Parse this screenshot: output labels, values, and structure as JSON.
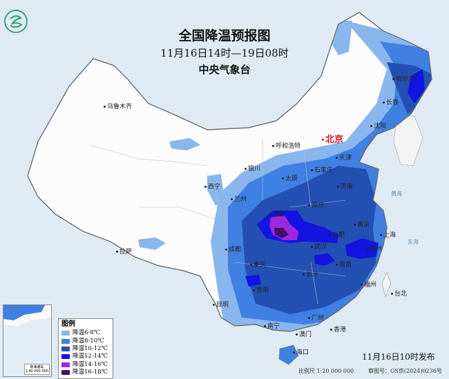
{
  "title": "全国降温预报图",
  "period": "11月16日14时—19日08时",
  "issuer": "中央气象台",
  "issued_time": "11月16日10时发布",
  "scale": "比例尺 1:20 000 000",
  "review_no": "审图号：GS京(2024)0236号",
  "inset": {
    "label": "南海诸岛",
    "scale": "1:40 000 000"
  },
  "legend": {
    "title": "图例",
    "items": [
      {
        "label": "降温6-8℃",
        "color": "#8ab6ee"
      },
      {
        "label": "降温8-10℃",
        "color": "#3f80e2"
      },
      {
        "label": "降温10-12℃",
        "color": "#2450b4"
      },
      {
        "label": "降温12-14℃",
        "color": "#1414e0"
      },
      {
        "label": "降温14-16℃",
        "color": "#a028dc"
      },
      {
        "label": "降温16-18℃",
        "color": "#4a0c6c"
      }
    ]
  },
  "cities": {
    "beijing": "北京",
    "urumqi": "乌鲁木齐",
    "harbin": "哈尔滨",
    "changchun": "长春",
    "shenyang": "沈阳",
    "hohhot": "呼和浩特",
    "tianjin": "天津",
    "yinchuan": "银川",
    "taiyuan": "太原",
    "shijiazhuang": "石家庄",
    "xining": "西宁",
    "lanzhou": "兰州",
    "jinan": "济南",
    "zhengzhou": "郑州",
    "xian": "西安",
    "hefei": "合肥",
    "nanjing": "南京",
    "shanghai": "上海",
    "hangzhou": "杭州",
    "wuhan": "武汉",
    "chengdu": "成都",
    "chongqing": "重庆",
    "lhasa": "拉萨",
    "changsha": "长沙",
    "nanchang": "南昌",
    "guiyang": "贵阳",
    "kunming": "昆明",
    "fuzhou": "福州",
    "taipei": "台北",
    "nanning": "南宁",
    "guangzhou": "广州",
    "hongkong": "香港",
    "macau": "澳门",
    "haikou": "海口"
  },
  "seas": {
    "yellow": "黄海",
    "east": "东海"
  }
}
